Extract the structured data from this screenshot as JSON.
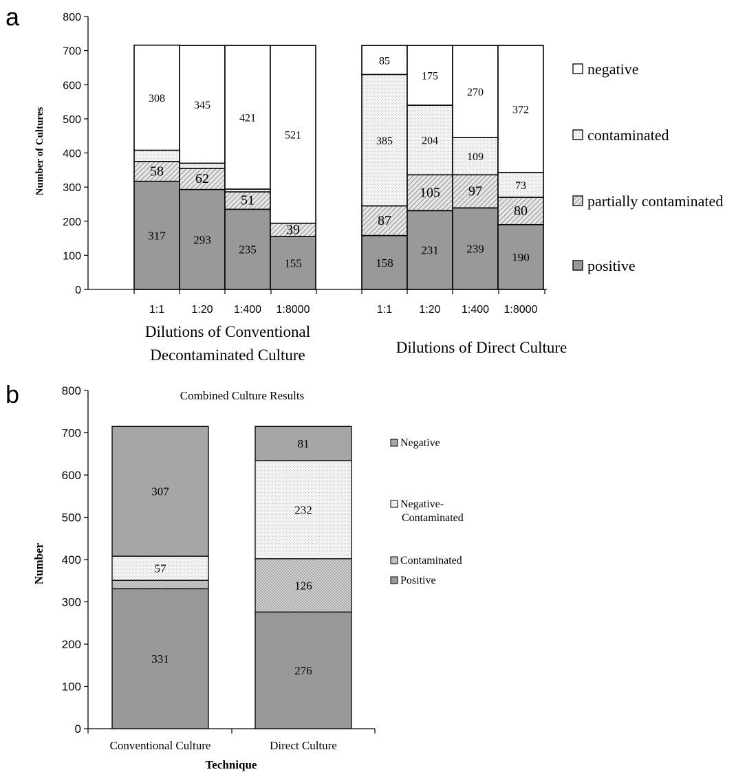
{
  "panels": [
    {
      "letter": "a",
      "chart_data": {
        "type": "bar",
        "stacked": true,
        "title": "",
        "ylabel": "Number of Cultures",
        "ylim": [
          0,
          800
        ],
        "yticks": [
          0,
          100,
          200,
          300,
          400,
          500,
          600,
          700,
          800
        ],
        "grid": false,
        "legend_position": "right",
        "legend": [
          "negative",
          "contaminated",
          "partially contaminated",
          "positive"
        ],
        "groups": [
          {
            "label_lines": [
              "Dilutions of Conventional",
              "Decontaminated Culture"
            ],
            "categories": [
              "1:1",
              "1:20",
              "1:400",
              "1:8000"
            ],
            "series": [
              {
                "name": "positive",
                "values": [
                  317,
                  293,
                  235,
                  155
                ],
                "labels": [
                  "317",
                  "293",
                  "235",
                  "155"
                ]
              },
              {
                "name": "partially contaminated",
                "values": [
                  58,
                  62,
                  51,
                  39
                ],
                "labels": [
                  "58",
                  "62",
                  "51",
                  "39"
                ]
              },
              {
                "name": "contaminated",
                "values": [
                  33,
                  15,
                  8,
                  0
                ],
                "labels": [
                  "",
                  "",
                  "",
                  ""
                ]
              },
              {
                "name": "negative",
                "values": [
                  308,
                  345,
                  421,
                  521
                ],
                "labels": [
                  "308",
                  "345",
                  "421",
                  "521"
                ]
              }
            ]
          },
          {
            "label_lines": [
              "Dilutions of Direct Culture"
            ],
            "categories": [
              "1:1",
              "1:20",
              "1:400",
              "1:8000"
            ],
            "series": [
              {
                "name": "positive",
                "values": [
                  158,
                  231,
                  239,
                  190
                ],
                "labels": [
                  "158",
                  "231",
                  "239",
                  "190"
                ]
              },
              {
                "name": "partially contaminated",
                "values": [
                  87,
                  105,
                  97,
                  80
                ],
                "labels": [
                  "87",
                  "105",
                  "97",
                  "80"
                ]
              },
              {
                "name": "contaminated",
                "values": [
                  385,
                  204,
                  109,
                  73
                ],
                "labels": [
                  "385",
                  "204",
                  "109",
                  "73"
                ]
              },
              {
                "name": "negative",
                "values": [
                  85,
                  175,
                  270,
                  372
                ],
                "labels": [
                  "85",
                  "175",
                  "270",
                  "372"
                ]
              }
            ]
          }
        ]
      }
    },
    {
      "letter": "b",
      "chart_data": {
        "type": "bar",
        "stacked": true,
        "title": "Combined Culture Results",
        "xlabel": "Technique",
        "ylabel": "Number",
        "ylim": [
          0,
          800
        ],
        "yticks": [
          0,
          100,
          200,
          300,
          400,
          500,
          600,
          700,
          800
        ],
        "grid": false,
        "legend_position": "right",
        "legend": [
          "Negative",
          "Negative-\nContaminated",
          "Contaminated",
          "Positive"
        ],
        "categories": [
          "Conventional Culture",
          "Direct Culture"
        ],
        "series": [
          {
            "name": "Positive",
            "values": [
              331,
              276
            ],
            "labels": [
              "331",
              "276"
            ]
          },
          {
            "name": "Contaminated",
            "values": [
              20,
              126
            ],
            "labels": [
              "",
              "126"
            ]
          },
          {
            "name": "Negative-Contaminated",
            "values": [
              57,
              232
            ],
            "labels": [
              "57",
              "232"
            ]
          },
          {
            "name": "Negative",
            "values": [
              307,
              81
            ],
            "labels": [
              "307",
              "81"
            ]
          }
        ]
      }
    }
  ]
}
